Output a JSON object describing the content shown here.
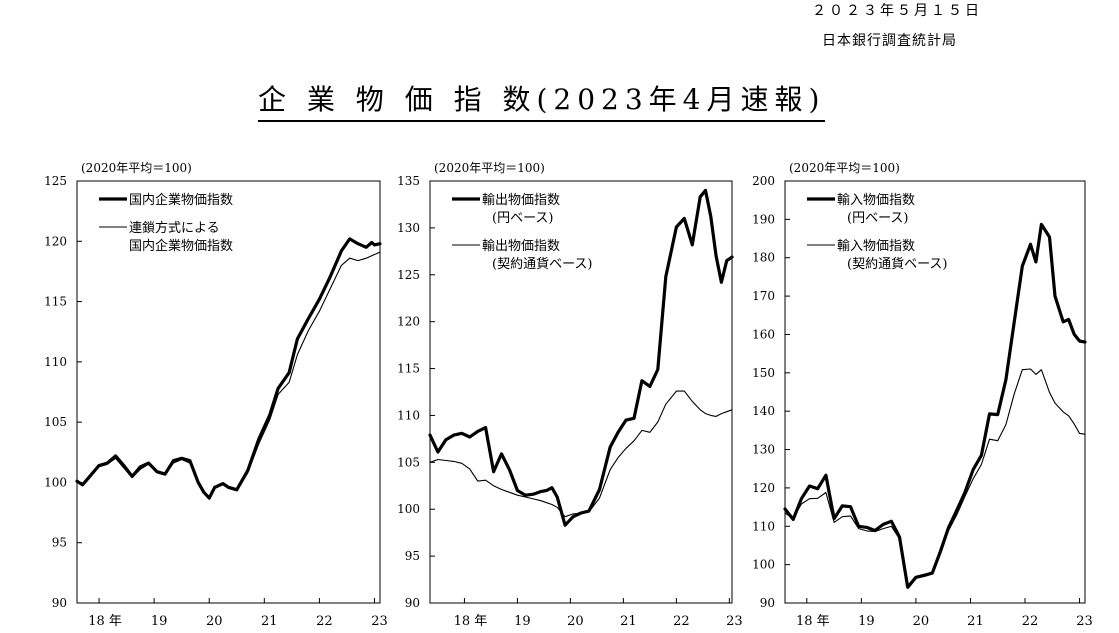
{
  "header": {
    "date": "２０２３年５月１５日",
    "org": "日本銀行調査統計局",
    "title": "企 業 物 価 指 数(2023年4月速報)"
  },
  "chart_data": [
    {
      "type": "line",
      "unit_label": "(2020年平均＝100)",
      "ylim": [
        90,
        125
      ],
      "yticks": [
        90,
        95,
        100,
        105,
        110,
        115,
        120,
        125
      ],
      "xlim": [
        2017.6,
        2023.1
      ],
      "xticks": [
        {
          "value": 2018,
          "label": "18 年"
        },
        {
          "value": 2019,
          "label": "19"
        },
        {
          "value": 2020,
          "label": "20"
        },
        {
          "value": 2021,
          "label": "21"
        },
        {
          "value": 2022,
          "label": "22"
        },
        {
          "value": 2023,
          "label": "23"
        }
      ],
      "series": [
        {
          "name": "国内企業物価指数",
          "width": 3.2,
          "x": [
            2017.6,
            2017.7,
            2017.85,
            2018.0,
            2018.15,
            2018.3,
            2018.45,
            2018.6,
            2018.75,
            2018.9,
            2019.05,
            2019.2,
            2019.35,
            2019.5,
            2019.65,
            2019.8,
            2019.9,
            2020.0,
            2020.1,
            2020.25,
            2020.35,
            2020.5,
            2020.7,
            2020.9,
            2021.1,
            2021.25,
            2021.45,
            2021.6,
            2021.8,
            2022.0,
            2022.2,
            2022.4,
            2022.55,
            2022.7,
            2022.85,
            2022.95,
            2023.0,
            2023.1
          ],
          "y": [
            100.1,
            99.8,
            100.6,
            101.4,
            101.6,
            102.2,
            101.4,
            100.5,
            101.3,
            101.6,
            100.9,
            100.7,
            101.8,
            102.0,
            101.8,
            100.0,
            99.2,
            98.7,
            99.6,
            99.9,
            99.6,
            99.4,
            101.0,
            103.6,
            105.6,
            107.8,
            109.1,
            111.9,
            113.6,
            115.2,
            117.1,
            119.2,
            120.2,
            119.8,
            119.5,
            119.9,
            119.7,
            119.8
          ]
        },
        {
          "name": "連鎖方式による\n国内企業物価指数",
          "width": 1.1,
          "x": [
            2017.6,
            2017.7,
            2017.85,
            2018.0,
            2018.15,
            2018.3,
            2018.45,
            2018.6,
            2018.75,
            2018.9,
            2019.05,
            2019.2,
            2019.35,
            2019.5,
            2019.65,
            2019.8,
            2019.9,
            2020.0,
            2020.1,
            2020.25,
            2020.35,
            2020.5,
            2020.7,
            2020.9,
            2021.1,
            2021.25,
            2021.45,
            2021.6,
            2021.8,
            2022.0,
            2022.2,
            2022.4,
            2022.55,
            2022.7,
            2022.85,
            2022.95,
            2023.0,
            2023.1
          ],
          "y": [
            100.1,
            99.8,
            100.5,
            101.3,
            101.5,
            102.0,
            101.2,
            100.4,
            101.1,
            101.5,
            100.8,
            100.6,
            101.6,
            101.9,
            101.6,
            99.9,
            99.1,
            98.6,
            99.5,
            99.8,
            99.5,
            99.3,
            100.8,
            103.2,
            105.2,
            107.3,
            108.3,
            110.6,
            112.6,
            114.2,
            116.1,
            118.0,
            118.6,
            118.4,
            118.6,
            118.8,
            118.9,
            119.1
          ]
        }
      ]
    },
    {
      "type": "line",
      "unit_label": "(2020年平均＝100)",
      "ylim": [
        90,
        135
      ],
      "yticks": [
        90,
        95,
        100,
        105,
        110,
        115,
        120,
        125,
        130,
        135
      ],
      "xlim": [
        2017.35,
        2023.05
      ],
      "xticks": [
        {
          "value": 2018,
          "label": "18 年"
        },
        {
          "value": 2019,
          "label": "19"
        },
        {
          "value": 2020,
          "label": "20"
        },
        {
          "value": 2021,
          "label": "21"
        },
        {
          "value": 2022,
          "label": "22"
        },
        {
          "value": 2023,
          "label": "23"
        }
      ],
      "series": [
        {
          "name": "輸出物価指数\n(円ベース)",
          "width": 3.2,
          "x": [
            2017.35,
            2017.5,
            2017.65,
            2017.8,
            2017.95,
            2018.1,
            2018.25,
            2018.4,
            2018.55,
            2018.7,
            2018.85,
            2019.0,
            2019.15,
            2019.3,
            2019.45,
            2019.55,
            2019.65,
            2019.75,
            2019.9,
            2020.05,
            2020.2,
            2020.35,
            2020.55,
            2020.75,
            2020.9,
            2021.05,
            2021.2,
            2021.35,
            2021.5,
            2021.65,
            2021.8,
            2022.0,
            2022.15,
            2022.3,
            2022.45,
            2022.55,
            2022.65,
            2022.75,
            2022.85,
            2022.95,
            2023.05
          ],
          "y": [
            107.9,
            106.1,
            107.4,
            107.9,
            108.1,
            107.7,
            108.3,
            108.7,
            104.0,
            105.9,
            104.2,
            102.0,
            101.5,
            101.6,
            101.9,
            102.0,
            102.3,
            101.3,
            98.3,
            99.2,
            99.6,
            99.8,
            102.1,
            106.6,
            108.2,
            109.5,
            109.7,
            113.7,
            113.1,
            114.9,
            124.8,
            130.1,
            131.0,
            128.2,
            133.3,
            134.0,
            131.2,
            127.0,
            124.2,
            126.5,
            126.9
          ]
        },
        {
          "name": "輸出物価指数\n(契約通貨ベース)",
          "width": 1.1,
          "x": [
            2017.35,
            2017.5,
            2017.65,
            2017.8,
            2017.95,
            2018.1,
            2018.25,
            2018.4,
            2018.55,
            2018.7,
            2018.85,
            2019.0,
            2019.15,
            2019.3,
            2019.45,
            2019.55,
            2019.65,
            2019.75,
            2019.9,
            2020.05,
            2020.2,
            2020.35,
            2020.55,
            2020.75,
            2020.9,
            2021.05,
            2021.2,
            2021.35,
            2021.5,
            2021.65,
            2021.8,
            2022.0,
            2022.15,
            2022.3,
            2022.45,
            2022.55,
            2022.65,
            2022.75,
            2022.85,
            2022.95,
            2023.05
          ],
          "y": [
            105.0,
            105.3,
            105.2,
            105.1,
            104.9,
            104.3,
            103.0,
            103.1,
            102.5,
            102.1,
            101.8,
            101.5,
            101.3,
            101.1,
            100.9,
            100.7,
            100.5,
            100.2,
            99.2,
            99.5,
            99.6,
            99.7,
            101.2,
            104.2,
            105.5,
            106.5,
            107.3,
            108.4,
            108.2,
            109.3,
            111.2,
            112.6,
            112.6,
            111.5,
            110.6,
            110.2,
            110.0,
            109.9,
            110.2,
            110.4,
            110.6
          ]
        }
      ]
    },
    {
      "type": "line",
      "unit_label": "(2020年平均＝100)",
      "ylim": [
        90,
        200
      ],
      "yticks": [
        90,
        100,
        110,
        120,
        130,
        140,
        150,
        160,
        170,
        180,
        190,
        200
      ],
      "xlim": [
        2017.6,
        2023.1
      ],
      "xticks": [
        {
          "value": 2018,
          "label": "18 年"
        },
        {
          "value": 2019,
          "label": "19"
        },
        {
          "value": 2020,
          "label": "20"
        },
        {
          "value": 2021,
          "label": "21"
        },
        {
          "value": 2022,
          "label": "22"
        },
        {
          "value": 2023,
          "label": "23"
        }
      ],
      "series": [
        {
          "name": "輸入物価指数\n(円ベース)",
          "width": 3.2,
          "x": [
            2017.6,
            2017.75,
            2017.9,
            2018.05,
            2018.2,
            2018.35,
            2018.5,
            2018.65,
            2018.8,
            2018.95,
            2019.1,
            2019.25,
            2019.4,
            2019.55,
            2019.7,
            2019.85,
            2020.0,
            2020.15,
            2020.3,
            2020.45,
            2020.6,
            2020.75,
            2020.9,
            2021.05,
            2021.2,
            2021.35,
            2021.5,
            2021.65,
            2021.8,
            2021.95,
            2022.1,
            2022.2,
            2022.3,
            2022.45,
            2022.55,
            2022.7,
            2022.8,
            2022.9,
            2023.0,
            2023.1
          ],
          "y": [
            114.5,
            111.8,
            117.2,
            120.5,
            119.8,
            123.3,
            112.0,
            115.3,
            115.1,
            110.0,
            109.7,
            108.9,
            110.5,
            111.3,
            107.2,
            94.1,
            96.7,
            97.2,
            97.8,
            103.5,
            109.7,
            114.2,
            118.9,
            124.8,
            128.5,
            139.3,
            139.1,
            148.2,
            163.0,
            177.8,
            183.5,
            178.9,
            188.7,
            185.4,
            170.0,
            163.3,
            163.9,
            160.1,
            158.3,
            158.0
          ]
        },
        {
          "name": "輸入物価指数\n(契約通貨ベース)",
          "width": 1.1,
          "x": [
            2017.6,
            2017.75,
            2017.9,
            2018.05,
            2018.2,
            2018.35,
            2018.5,
            2018.65,
            2018.8,
            2018.95,
            2019.1,
            2019.25,
            2019.4,
            2019.55,
            2019.7,
            2019.85,
            2020.0,
            2020.15,
            2020.3,
            2020.45,
            2020.6,
            2020.75,
            2020.9,
            2021.05,
            2021.2,
            2021.35,
            2021.5,
            2021.65,
            2021.8,
            2021.95,
            2022.1,
            2022.2,
            2022.3,
            2022.45,
            2022.55,
            2022.7,
            2022.8,
            2022.9,
            2023.0,
            2023.1
          ],
          "y": [
            113.4,
            112.1,
            115.8,
            117.2,
            117.3,
            118.8,
            111.0,
            112.5,
            112.7,
            109.4,
            108.8,
            108.6,
            109.4,
            110.0,
            106.7,
            94.6,
            96.9,
            97.5,
            97.6,
            102.8,
            108.9,
            113.0,
            117.8,
            122.4,
            126.1,
            132.7,
            132.3,
            136.5,
            144.4,
            150.8,
            151.0,
            149.6,
            150.8,
            144.9,
            142.1,
            139.8,
            138.8,
            136.7,
            134.2,
            134.0
          ]
        }
      ]
    }
  ]
}
